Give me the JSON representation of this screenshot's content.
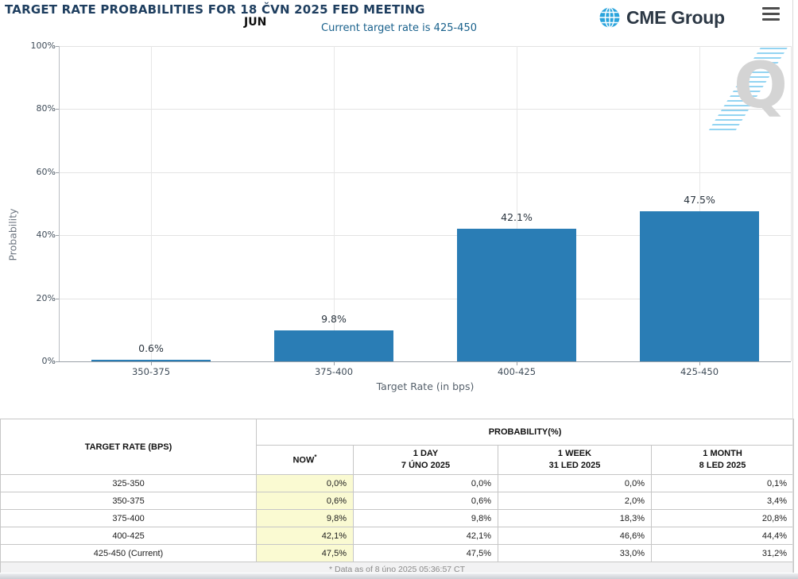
{
  "header": {
    "title": "TARGET RATE PROBABILITIES FOR 18 ČVN 2025 FED MEETING",
    "month_label": "JUN",
    "subtitle": "Current target rate is 425-450",
    "logo_text": "CME Group",
    "watermark_letter": "Q"
  },
  "colors": {
    "bar": "#2a7db5",
    "title_text": "#1e3e5f",
    "subtitle_text": "#19618c",
    "now_column_bg": "#fafad2",
    "logo_globe": "#2aa4dc"
  },
  "chart_data": {
    "type": "bar",
    "categories": [
      "350-375",
      "375-400",
      "400-425",
      "425-450"
    ],
    "values": [
      0.6,
      9.8,
      42.1,
      47.5
    ],
    "value_labels": [
      "0.6%",
      "9.8%",
      "42.1%",
      "47.5%"
    ],
    "xlabel": "Target Rate (in bps)",
    "ylabel": "Probability",
    "ylim": [
      0,
      100
    ],
    "ytick_step": 20,
    "yticks": [
      "0%",
      "20%",
      "40%",
      "60%",
      "80%",
      "100%"
    ],
    "grid": true,
    "legend": "none",
    "bar_color": "#2a7db5"
  },
  "table": {
    "row_header": "TARGET RATE (BPS)",
    "col_group_header": "PROBABILITY(%)",
    "columns": [
      {
        "label": "NOW",
        "sup": "*",
        "date": ""
      },
      {
        "label": "1 DAY",
        "date": "7 ÚNO 2025"
      },
      {
        "label": "1 WEEK",
        "date": "31 LED 2025"
      },
      {
        "label": "1 MONTH",
        "date": "8 LED 2025"
      }
    ],
    "rows": [
      {
        "rate": "325-350",
        "values": [
          "0,0%",
          "0,0%",
          "0,0%",
          "0,1%"
        ]
      },
      {
        "rate": "350-375",
        "values": [
          "0,6%",
          "0,6%",
          "2,0%",
          "3,4%"
        ]
      },
      {
        "rate": "375-400",
        "values": [
          "9,8%",
          "9,8%",
          "18,3%",
          "20,8%"
        ]
      },
      {
        "rate": "400-425",
        "values": [
          "42,1%",
          "42,1%",
          "46,6%",
          "44,4%"
        ]
      },
      {
        "rate": "425-450 (Current)",
        "values": [
          "47,5%",
          "47,5%",
          "33,0%",
          "31,2%"
        ]
      }
    ],
    "footnote": "* Data as of 8 úno 2025 05:36:57 CT"
  }
}
